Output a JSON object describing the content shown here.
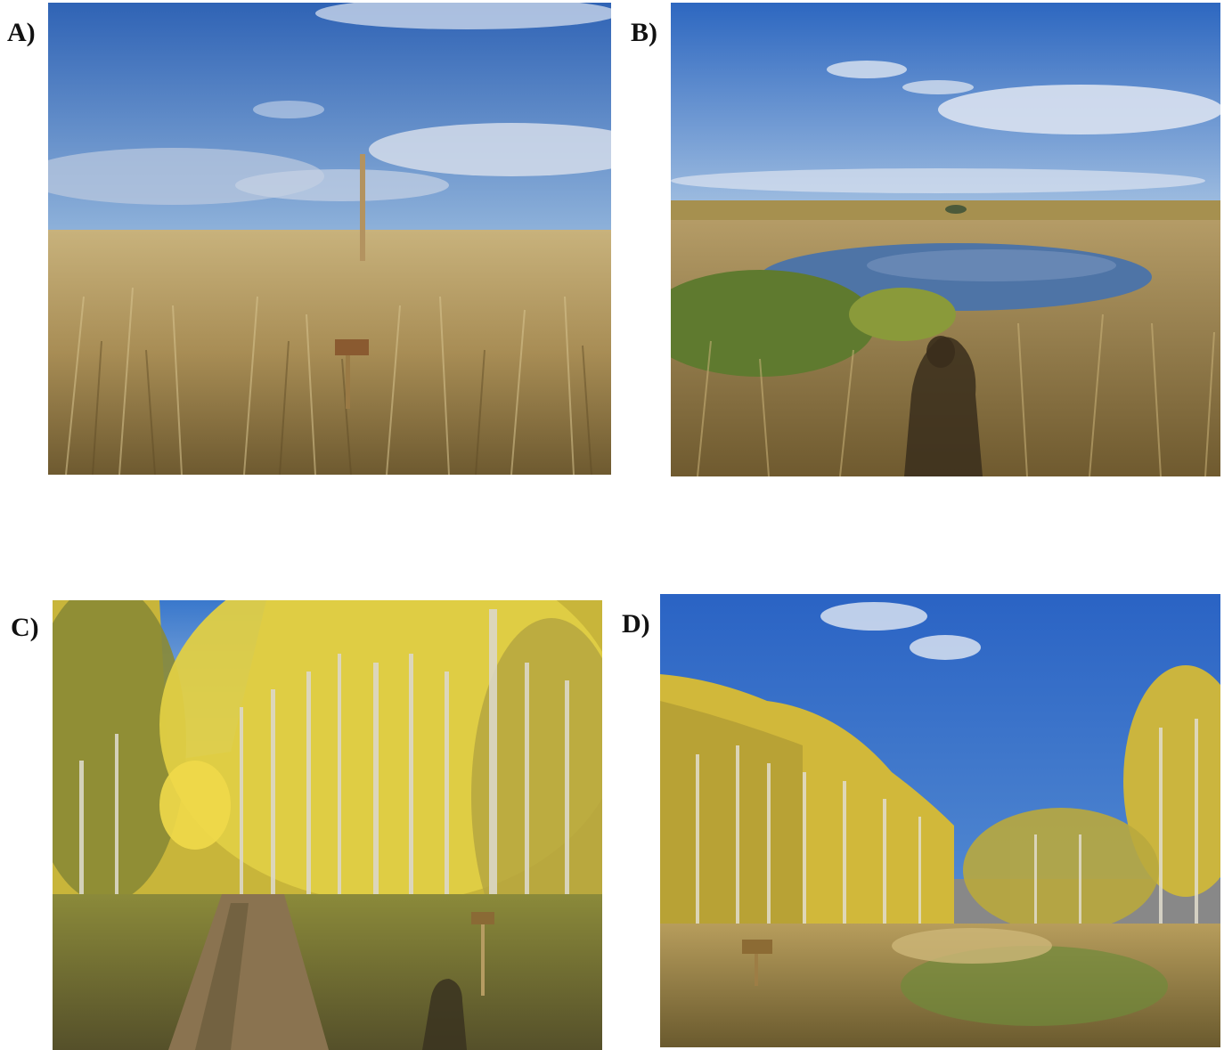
{
  "panels": [
    {
      "label": "A)",
      "scene": "grassland-with-signpost"
    },
    {
      "label": "B)",
      "scene": "wetland-pond-with-shadow"
    },
    {
      "label": "C)",
      "scene": "aspen-forest-trail"
    },
    {
      "label": "D)",
      "scene": "aspen-forest-edge-meadow"
    }
  ],
  "colors": {
    "sky": "#3f73c2",
    "grass": "#b39a5e",
    "foliage": "#d8c23a",
    "water": "#4f6f9a"
  }
}
